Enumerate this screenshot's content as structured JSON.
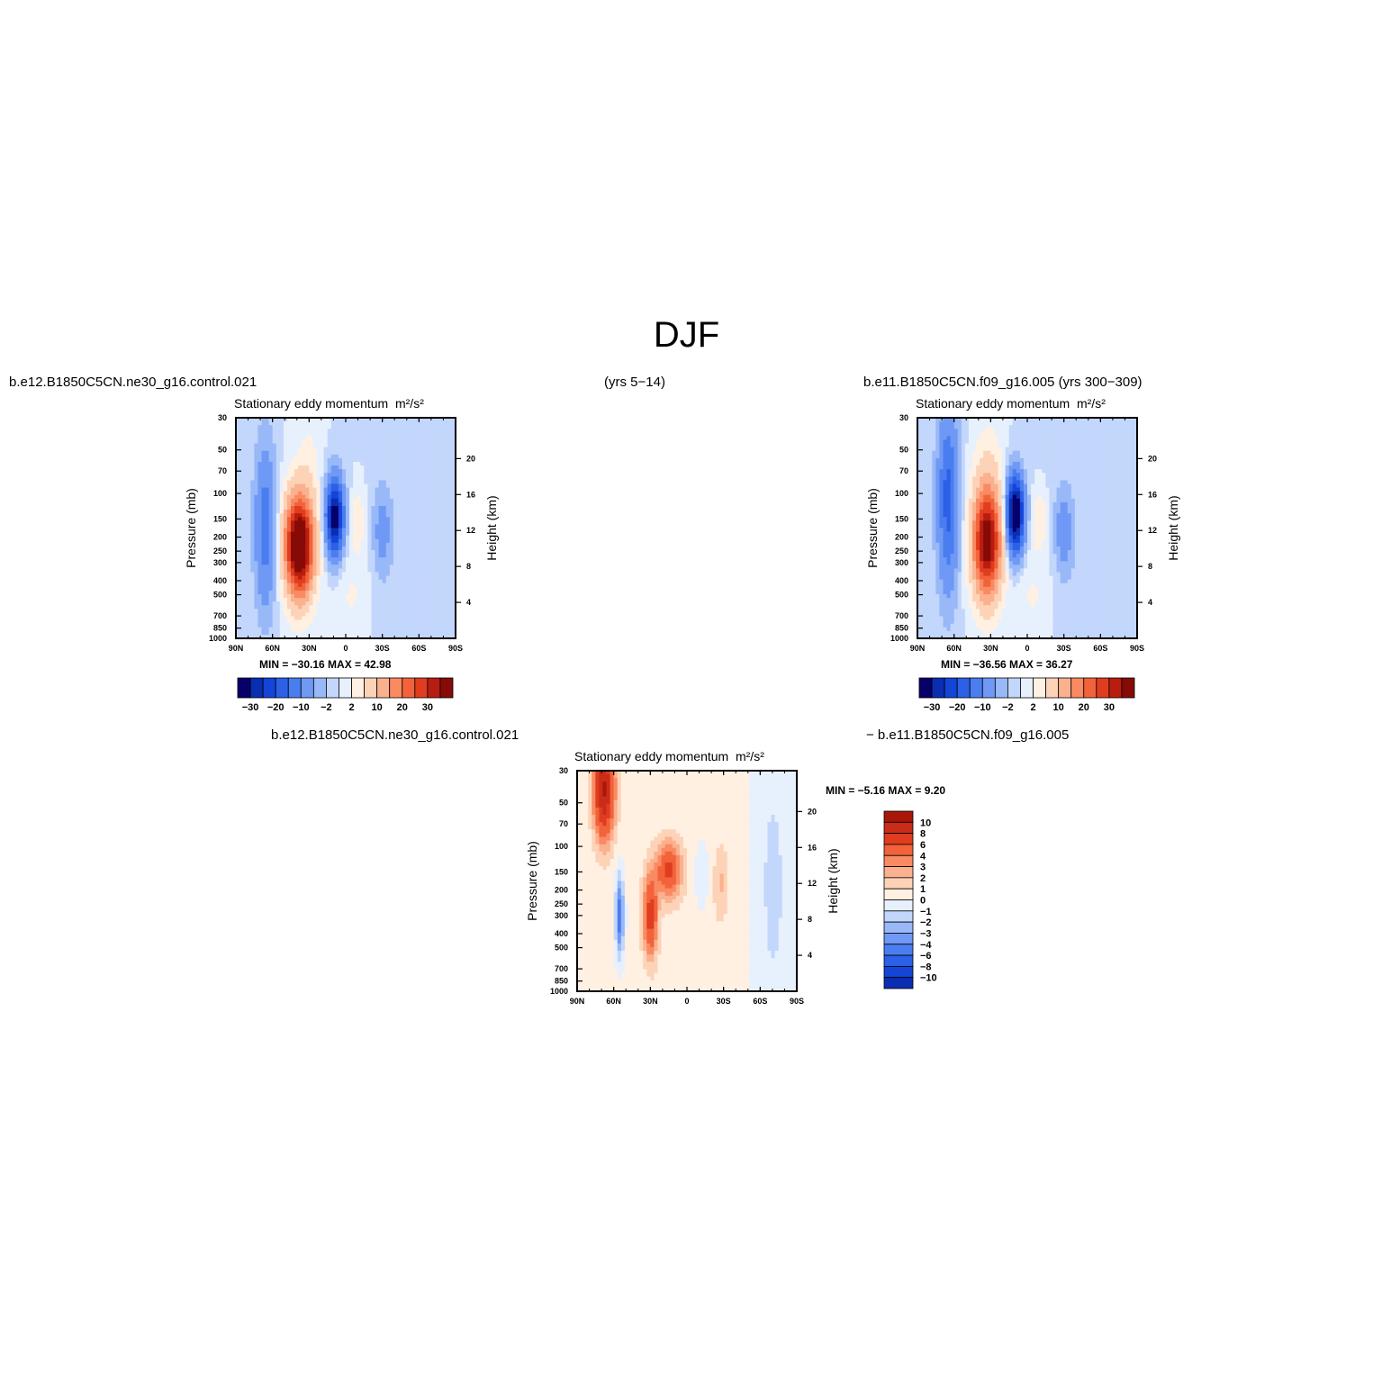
{
  "main_title": "DJF",
  "panel1": {
    "case": "b.e12.B1850C5CN.ne30_g16.control.021",
    "years": "(yrs 5−14)",
    "title": "Stationary eddy momentum",
    "units": "m²/s²",
    "min_max": "MIN =  −30.16   MAX =    42.98"
  },
  "panel2": {
    "case": "b.e11.B1850C5CN.f09_g16.005",
    "years": "(yrs 300−309)",
    "title": "Stationary eddy momentum",
    "units": "m²/s²",
    "min_max": "MIN =  −36.56   MAX =    36.27"
  },
  "panel3": {
    "case_a": "b.e12.B1850C5CN.ne30_g16.control.021",
    "case_b": "−  b.e11.B1850C5CN.f09_g16.005",
    "title": "Stationary eddy momentum",
    "units": "m²/s²",
    "min_max": "MIN =    −5.16    MAX =      9.20"
  },
  "colors": {
    "levels_17": [
      "#08006a",
      "#0a2db2",
      "#1245d8",
      "#2c60e6",
      "#4a7df0",
      "#6f99f5",
      "#98b8f8",
      "#c3d6fb",
      "#e7f0fd",
      "#fff0e2",
      "#fdd3b8",
      "#fbb08e",
      "#f98a62",
      "#f2633b",
      "#e03c1f",
      "#b81d10",
      "#860b06"
    ],
    "levels_18": [
      "#08006a",
      "#0a2db2",
      "#1245d8",
      "#2c60e6",
      "#4a7df0",
      "#6f99f5",
      "#98b8f8",
      "#c3d6fb",
      "#e7f0fd",
      "#fff0e2",
      "#fdd3b8",
      "#fbb08e",
      "#f98a62",
      "#f2633b",
      "#e03c1f",
      "#c92c18",
      "#a81709",
      "#860b06"
    ]
  },
  "chart_data": [
    {
      "type": "heatmap",
      "panel": "control.021",
      "title": "Stationary eddy momentum",
      "units": "m²/s²",
      "ylabel": "Pressure (mb)",
      "y2label": "Height (km)",
      "x_ticks": [
        "90N",
        "60N",
        "30N",
        "0",
        "30S",
        "60S",
        "90S"
      ],
      "y_ticks": [
        30,
        50,
        70,
        100,
        150,
        200,
        250,
        300,
        400,
        500,
        700,
        850,
        1000
      ],
      "y2_ticks": [
        20,
        16,
        12,
        8,
        4
      ],
      "log_pressure_axis": true,
      "colorbar_labels": [
        "−30",
        "−20",
        "−10",
        "−2",
        "2",
        "10",
        "20",
        "30"
      ],
      "colorbar_orientation": "horizontal",
      "min": -30.16,
      "max": 42.98,
      "features": [
        {
          "lat": 38,
          "p": 230,
          "value": 42.98
        },
        {
          "lat": 9,
          "p": 150,
          "value": -30.16
        },
        {
          "lat": 65,
          "p": 180,
          "value": -12
        },
        {
          "lat": -30,
          "p": 180,
          "value": -6
        }
      ]
    },
    {
      "type": "heatmap",
      "panel": "f09_g16.005",
      "title": "Stationary eddy momentum",
      "units": "m²/s²",
      "ylabel": "Pressure (mb)",
      "y2label": "Height (km)",
      "x_ticks": [
        "90N",
        "60N",
        "30N",
        "0",
        "30S",
        "60S",
        "90S"
      ],
      "y_ticks": [
        30,
        50,
        70,
        100,
        150,
        200,
        250,
        300,
        400,
        500,
        700,
        850,
        1000
      ],
      "y2_ticks": [
        20,
        16,
        12,
        8,
        4
      ],
      "log_pressure_axis": true,
      "colorbar_labels": [
        "−30",
        "−20",
        "−10",
        "−2",
        "2",
        "10",
        "20",
        "30"
      ],
      "colorbar_orientation": "horizontal",
      "min": -36.56,
      "max": 36.27,
      "features": [
        {
          "lat": 32,
          "p": 220,
          "value": 36.27
        },
        {
          "lat": 10,
          "p": 140,
          "value": -36.56
        },
        {
          "lat": 65,
          "p": 110,
          "value": -16
        },
        {
          "lat": -30,
          "p": 180,
          "value": -7
        }
      ]
    },
    {
      "type": "heatmap",
      "panel": "difference",
      "title": "Stationary eddy momentum",
      "units": "m²/s²",
      "ylabel": "Pressure (mb)",
      "y2label": "Height (km)",
      "x_ticks": [
        "90N",
        "60N",
        "30N",
        "0",
        "30S",
        "60S",
        "90S"
      ],
      "y_ticks": [
        30,
        50,
        70,
        100,
        150,
        200,
        250,
        300,
        400,
        500,
        700,
        850,
        1000
      ],
      "y2_ticks": [
        20,
        16,
        12,
        8,
        4
      ],
      "log_pressure_axis": true,
      "colorbar_labels": [
        "10",
        "8",
        "6",
        "4",
        "3",
        "2",
        "1",
        "0",
        "−1",
        "−2",
        "−3",
        "−4",
        "−6",
        "−8",
        "−10"
      ],
      "colorbar_orientation": "vertical",
      "min": -5.16,
      "max": 9.2,
      "features": [
        {
          "lat": 68,
          "p": 40,
          "value": 9.2
        },
        {
          "lat": 15,
          "p": 150,
          "value": 6
        },
        {
          "lat": 30,
          "p": 300,
          "value": 6
        },
        {
          "lat": 55,
          "p": 300,
          "value": -5.16
        }
      ]
    }
  ]
}
